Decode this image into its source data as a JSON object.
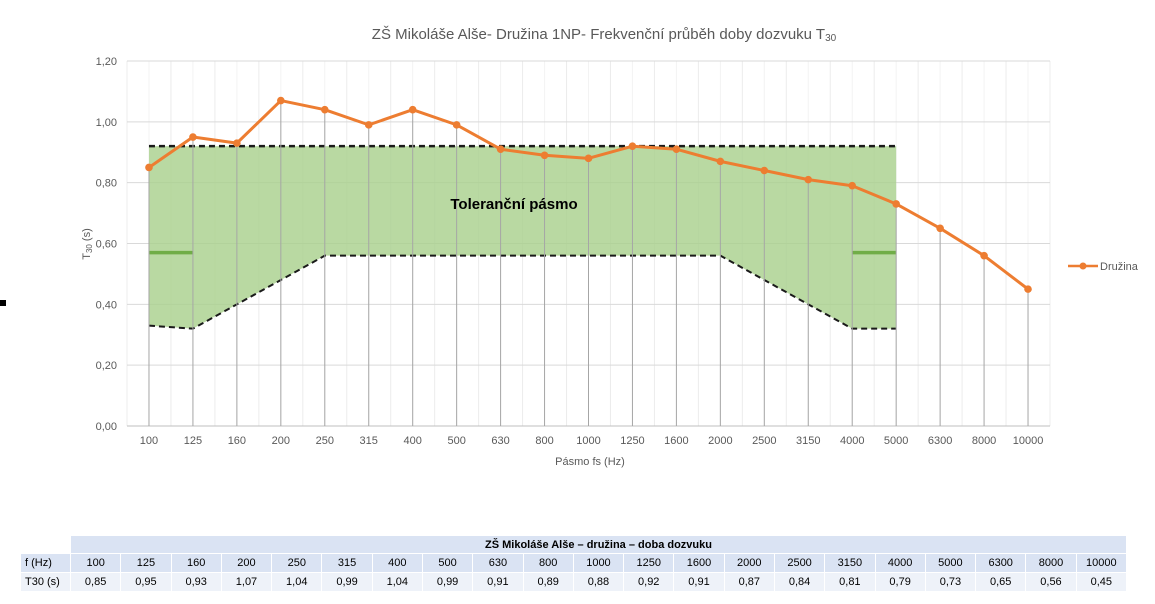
{
  "chart_data": {
    "type": "line",
    "title": "ZŠ Mikoláše Alše- Družina 1NP- Frekvenční průběh doby dozvuku T",
    "title_subscript": "30",
    "xlabel": "Pásmo fs (Hz)",
    "ylabel_main": "T",
    "ylabel_sub": "30",
    "ylabel_unit": " (s)",
    "categories": [
      "100",
      "125",
      "160",
      "200",
      "250",
      "315",
      "400",
      "500",
      "630",
      "800",
      "1000",
      "1250",
      "1600",
      "2000",
      "2500",
      "3150",
      "4000",
      "5000",
      "6300",
      "8000",
      "10000"
    ],
    "series": [
      {
        "name": "Družina",
        "color": "#ed7d31",
        "values": [
          0.85,
          0.95,
          0.93,
          1.07,
          1.04,
          0.99,
          1.04,
          0.99,
          0.91,
          0.89,
          0.88,
          0.92,
          0.91,
          0.87,
          0.84,
          0.81,
          0.79,
          0.73,
          0.65,
          0.56,
          0.45
        ]
      }
    ],
    "yticks": [
      "0,00",
      "0,20",
      "0,40",
      "0,60",
      "0,80",
      "1,00",
      "1,20"
    ],
    "ylim": [
      0,
      1.2
    ],
    "tolerance_band": {
      "label": "Toleranční pásmo",
      "fill_color": "#a9d18e",
      "upper": [
        0.92,
        0.92,
        0.92,
        0.92,
        0.92,
        0.92,
        0.92,
        0.92,
        0.92,
        0.92,
        0.92,
        0.92,
        0.92,
        0.92,
        0.92,
        0.92,
        0.92,
        0.92
      ],
      "lower": [
        0.33,
        0.32,
        0.4,
        0.48,
        0.56,
        0.56,
        0.56,
        0.56,
        0.56,
        0.56,
        0.56,
        0.56,
        0.56,
        0.56,
        0.48,
        0.4,
        0.32,
        0.32
      ],
      "mid_marks": [
        {
          "from": 0,
          "to": 1,
          "value": 0.57
        },
        {
          "from": 16,
          "to": 17,
          "value": 0.57
        }
      ]
    },
    "legend": "right"
  },
  "table": {
    "title": "ZŠ Mikoláše Alše – družina – doba dozvuku",
    "f_label": "f (Hz)",
    "t_label": "T30 (s)",
    "f_values": [
      "100",
      "125",
      "160",
      "200",
      "250",
      "315",
      "400",
      "500",
      "630",
      "800",
      "1000",
      "1250",
      "1600",
      "2000",
      "2500",
      "3150",
      "4000",
      "5000",
      "6300",
      "8000",
      "10000"
    ],
    "t_values": [
      "0,85",
      "0,95",
      "0,93",
      "1,07",
      "1,04",
      "0,99",
      "1,04",
      "0,99",
      "0,91",
      "0,89",
      "0,88",
      "0,92",
      "0,91",
      "0,87",
      "0,84",
      "0,81",
      "0,79",
      "0,73",
      "0,65",
      "0,56",
      "0,45"
    ]
  }
}
